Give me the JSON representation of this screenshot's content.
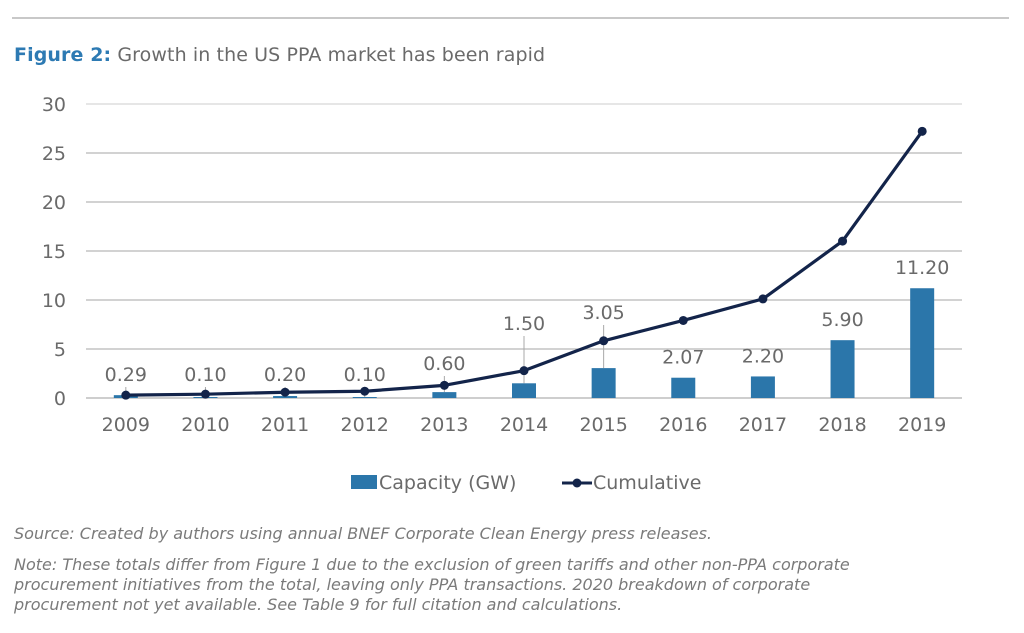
{
  "figure": {
    "label": "Figure 2:",
    "title": "Growth in the US PPA market has been rapid"
  },
  "chart_data": {
    "type": "bar",
    "title": "Growth in the US PPA market has been rapid",
    "xlabel": "",
    "ylabel": "",
    "categories": [
      "2009",
      "2010",
      "2011",
      "2012",
      "2013",
      "2014",
      "2015",
      "2016",
      "2017",
      "2018",
      "2019"
    ],
    "ylim": [
      0,
      30
    ],
    "yticks": [
      0,
      5,
      10,
      15,
      20,
      25,
      30
    ],
    "grid": true,
    "legend_position": "bottom",
    "series": [
      {
        "name": "Capacity (GW)",
        "type": "bar",
        "color": "#2b76aa",
        "values": [
          0.29,
          0.1,
          0.2,
          0.1,
          0.6,
          1.5,
          3.05,
          2.07,
          2.2,
          5.9,
          11.2
        ],
        "labels": [
          "0.29",
          "0.10",
          "0.20",
          "0.10",
          "0.60",
          "1.50",
          "3.05",
          "2.07",
          "2.20",
          "5.90",
          "11.20"
        ]
      },
      {
        "name": "Cumulative",
        "type": "line",
        "color": "#13244a",
        "values": [
          0.29,
          0.39,
          0.59,
          0.69,
          1.29,
          2.79,
          5.84,
          7.91,
          10.11,
          16.01,
          27.21
        ]
      }
    ]
  },
  "footer": {
    "source": "Source: Created by authors using annual BNEF Corporate Clean Energy press releases.",
    "note_lines": [
      "Note: These totals differ from Figure 1 due to the exclusion of green tariffs and other non-PPA corporate",
      "procurement initiatives from the total, leaving only PPA transactions. 2020 breakdown of corporate",
      "procurement not yet available. See Table 9 for full citation and calculations."
    ]
  }
}
